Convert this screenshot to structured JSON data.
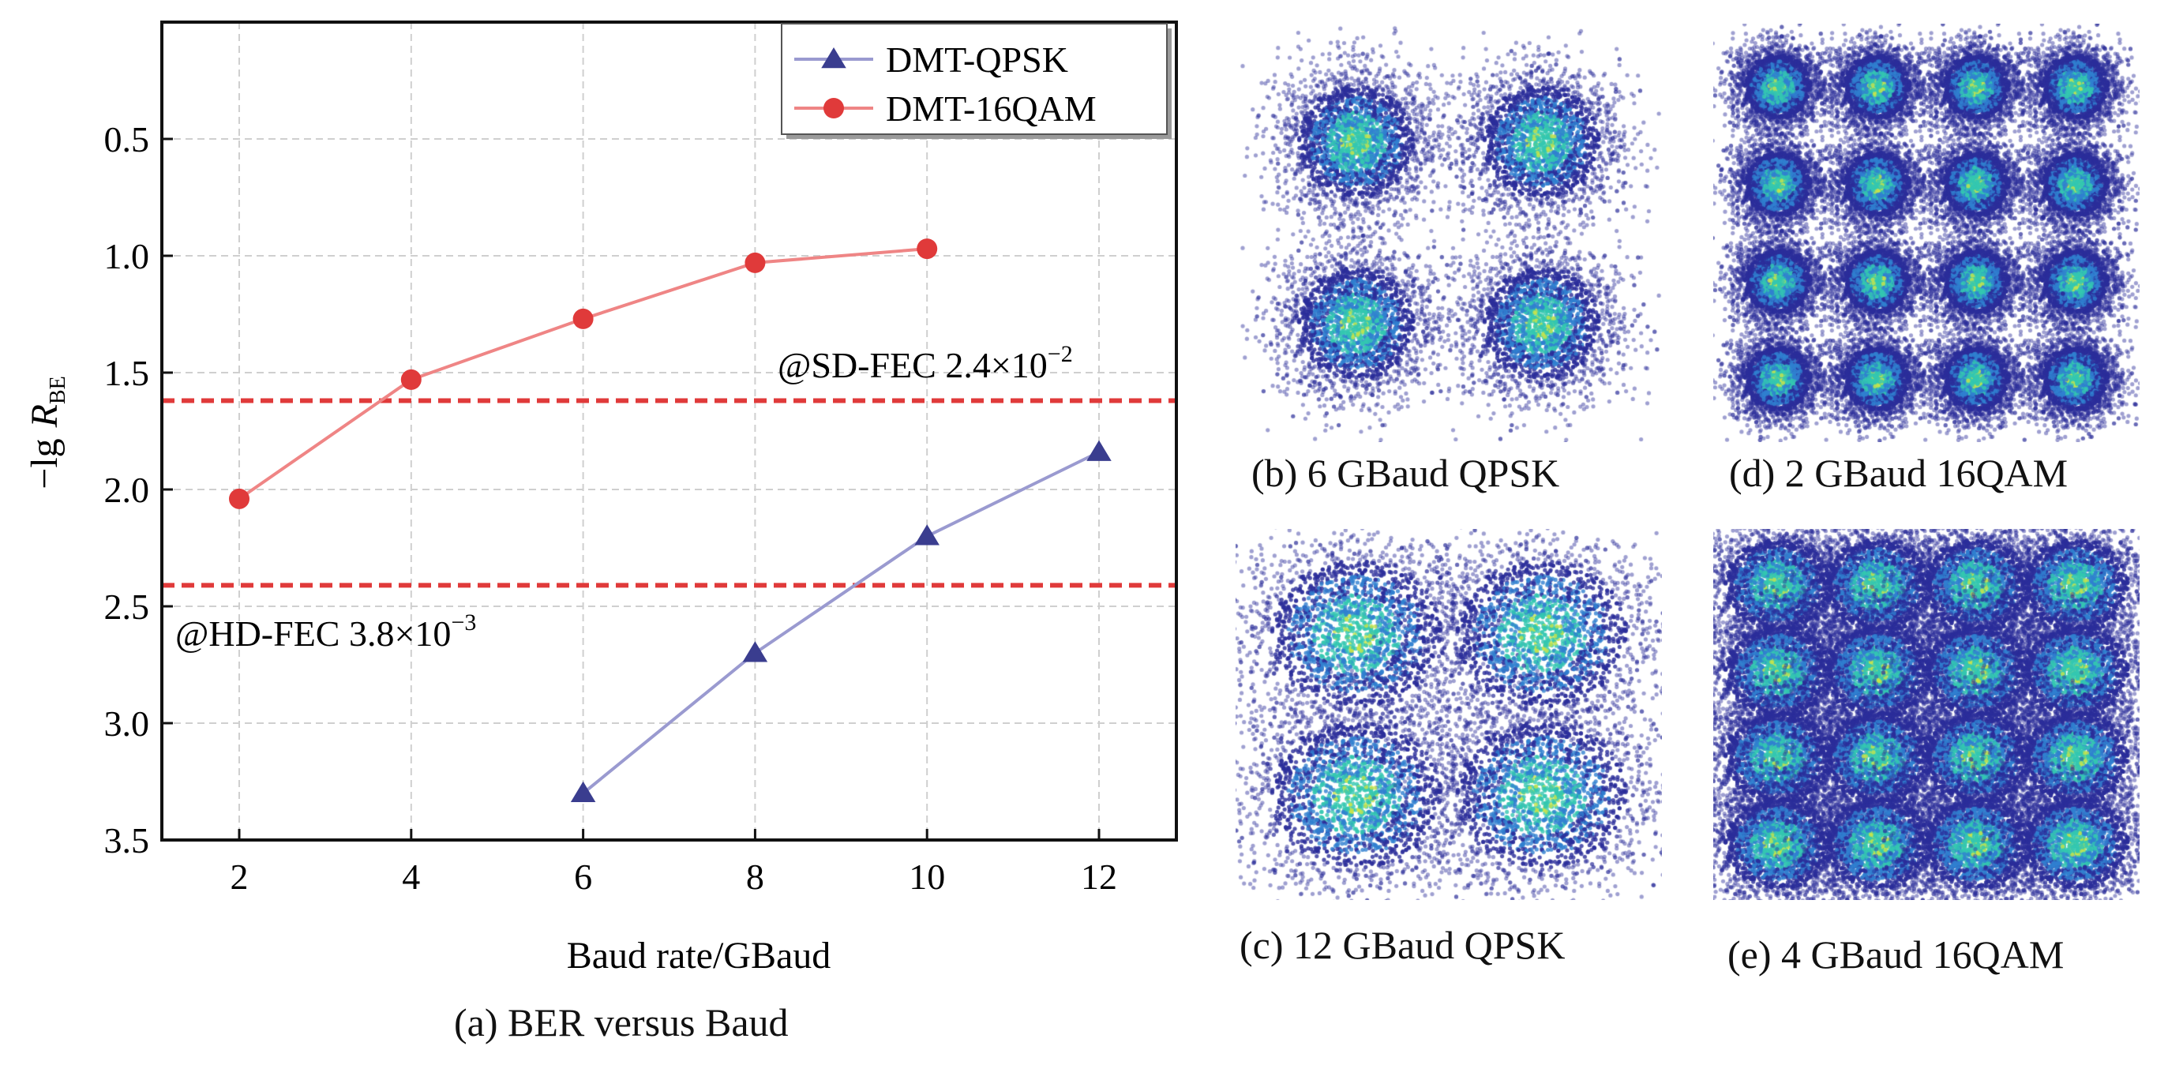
{
  "chart_data": [
    {
      "type": "line",
      "caption": "(a) BER versus Baud",
      "xlabel": "Baud rate/GBaud",
      "ylabel_main": "−lg",
      "ylabel_symbol": "R",
      "ylabel_sub": "BE",
      "xlim": [
        1.1,
        12.9
      ],
      "ylim": [
        0,
        3.5
      ],
      "y_inverted": true,
      "x_ticks": [
        2,
        4,
        6,
        8,
        10,
        12
      ],
      "x_tick_labels": [
        "2",
        "4",
        "6",
        "8",
        "10",
        "12"
      ],
      "y_ticks": [
        0.5,
        1.0,
        1.5,
        2.0,
        2.5,
        3.0,
        3.5
      ],
      "y_tick_labels": [
        "0.5",
        "1.0",
        "1.5",
        "2.0",
        "2.5",
        "3.0",
        "3.5"
      ],
      "grid": true,
      "legend_position": "top-right",
      "series": [
        {
          "name": "DMT-QPSK",
          "marker": "triangle",
          "color": "#3a3d8f",
          "line_color": "#9a9ad0",
          "x": [
            6,
            8,
            10,
            12
          ],
          "y": [
            3.3,
            2.7,
            2.2,
            1.84
          ]
        },
        {
          "name": "DMT-16QAM",
          "marker": "circle",
          "color": "#e03a3a",
          "line_color": "#ef8585",
          "x": [
            2,
            4,
            6,
            8,
            10
          ],
          "y": [
            2.04,
            1.53,
            1.27,
            1.03,
            0.97
          ]
        }
      ],
      "thresholds": [
        {
          "label": "@SD-FEC 2.4×10",
          "exponent": "−2",
          "y": 1.62,
          "color": "#e03a3a"
        },
        {
          "label": "@HD-FEC 3.8×10",
          "exponent": "−3",
          "y": 2.41,
          "color": "#e03a3a"
        }
      ]
    },
    {
      "type": "scatter",
      "caption": "(b) 6 GBaud QPSK",
      "clusters": [
        [
          -1,
          1
        ],
        [
          1,
          1
        ],
        [
          -1,
          -1
        ],
        [
          1,
          -1
        ]
      ],
      "spread": 0.42
    },
    {
      "type": "scatter",
      "caption": "(c) 12 GBaud QPSK",
      "clusters": [
        [
          -1,
          1
        ],
        [
          1,
          1
        ],
        [
          -1,
          -1
        ],
        [
          1,
          -1
        ]
      ],
      "spread": 0.62
    },
    {
      "type": "scatter",
      "caption": "(d) 2 GBaud 16QAM",
      "clusters": [
        [
          -3,
          3
        ],
        [
          -1,
          3
        ],
        [
          1,
          3
        ],
        [
          3,
          3
        ],
        [
          -3,
          1
        ],
        [
          -1,
          1
        ],
        [
          1,
          1
        ],
        [
          3,
          1
        ],
        [
          -3,
          -1
        ],
        [
          -1,
          -1
        ],
        [
          1,
          -1
        ],
        [
          3,
          -1
        ],
        [
          -3,
          -3
        ],
        [
          -1,
          -3
        ],
        [
          1,
          -3
        ],
        [
          3,
          -3
        ]
      ],
      "spread": 0.45
    },
    {
      "type": "scatter",
      "caption": "(e) 4 GBaud 16QAM",
      "clusters": [
        [
          -3,
          3
        ],
        [
          -1,
          3
        ],
        [
          1,
          3
        ],
        [
          3,
          3
        ],
        [
          -3,
          1
        ],
        [
          -1,
          1
        ],
        [
          1,
          1
        ],
        [
          3,
          1
        ],
        [
          -3,
          -1
        ],
        [
          -1,
          -1
        ],
        [
          1,
          -1
        ],
        [
          3,
          -1
        ],
        [
          -3,
          -3
        ],
        [
          -1,
          -3
        ],
        [
          1,
          -3
        ],
        [
          3,
          -3
        ]
      ],
      "spread": 0.72
    }
  ],
  "colors": {
    "density_low": "#2a2d9a",
    "density_mid": "#2f7fd0",
    "density_high": "#33c7b0",
    "density_peak": "#c9e34a"
  }
}
